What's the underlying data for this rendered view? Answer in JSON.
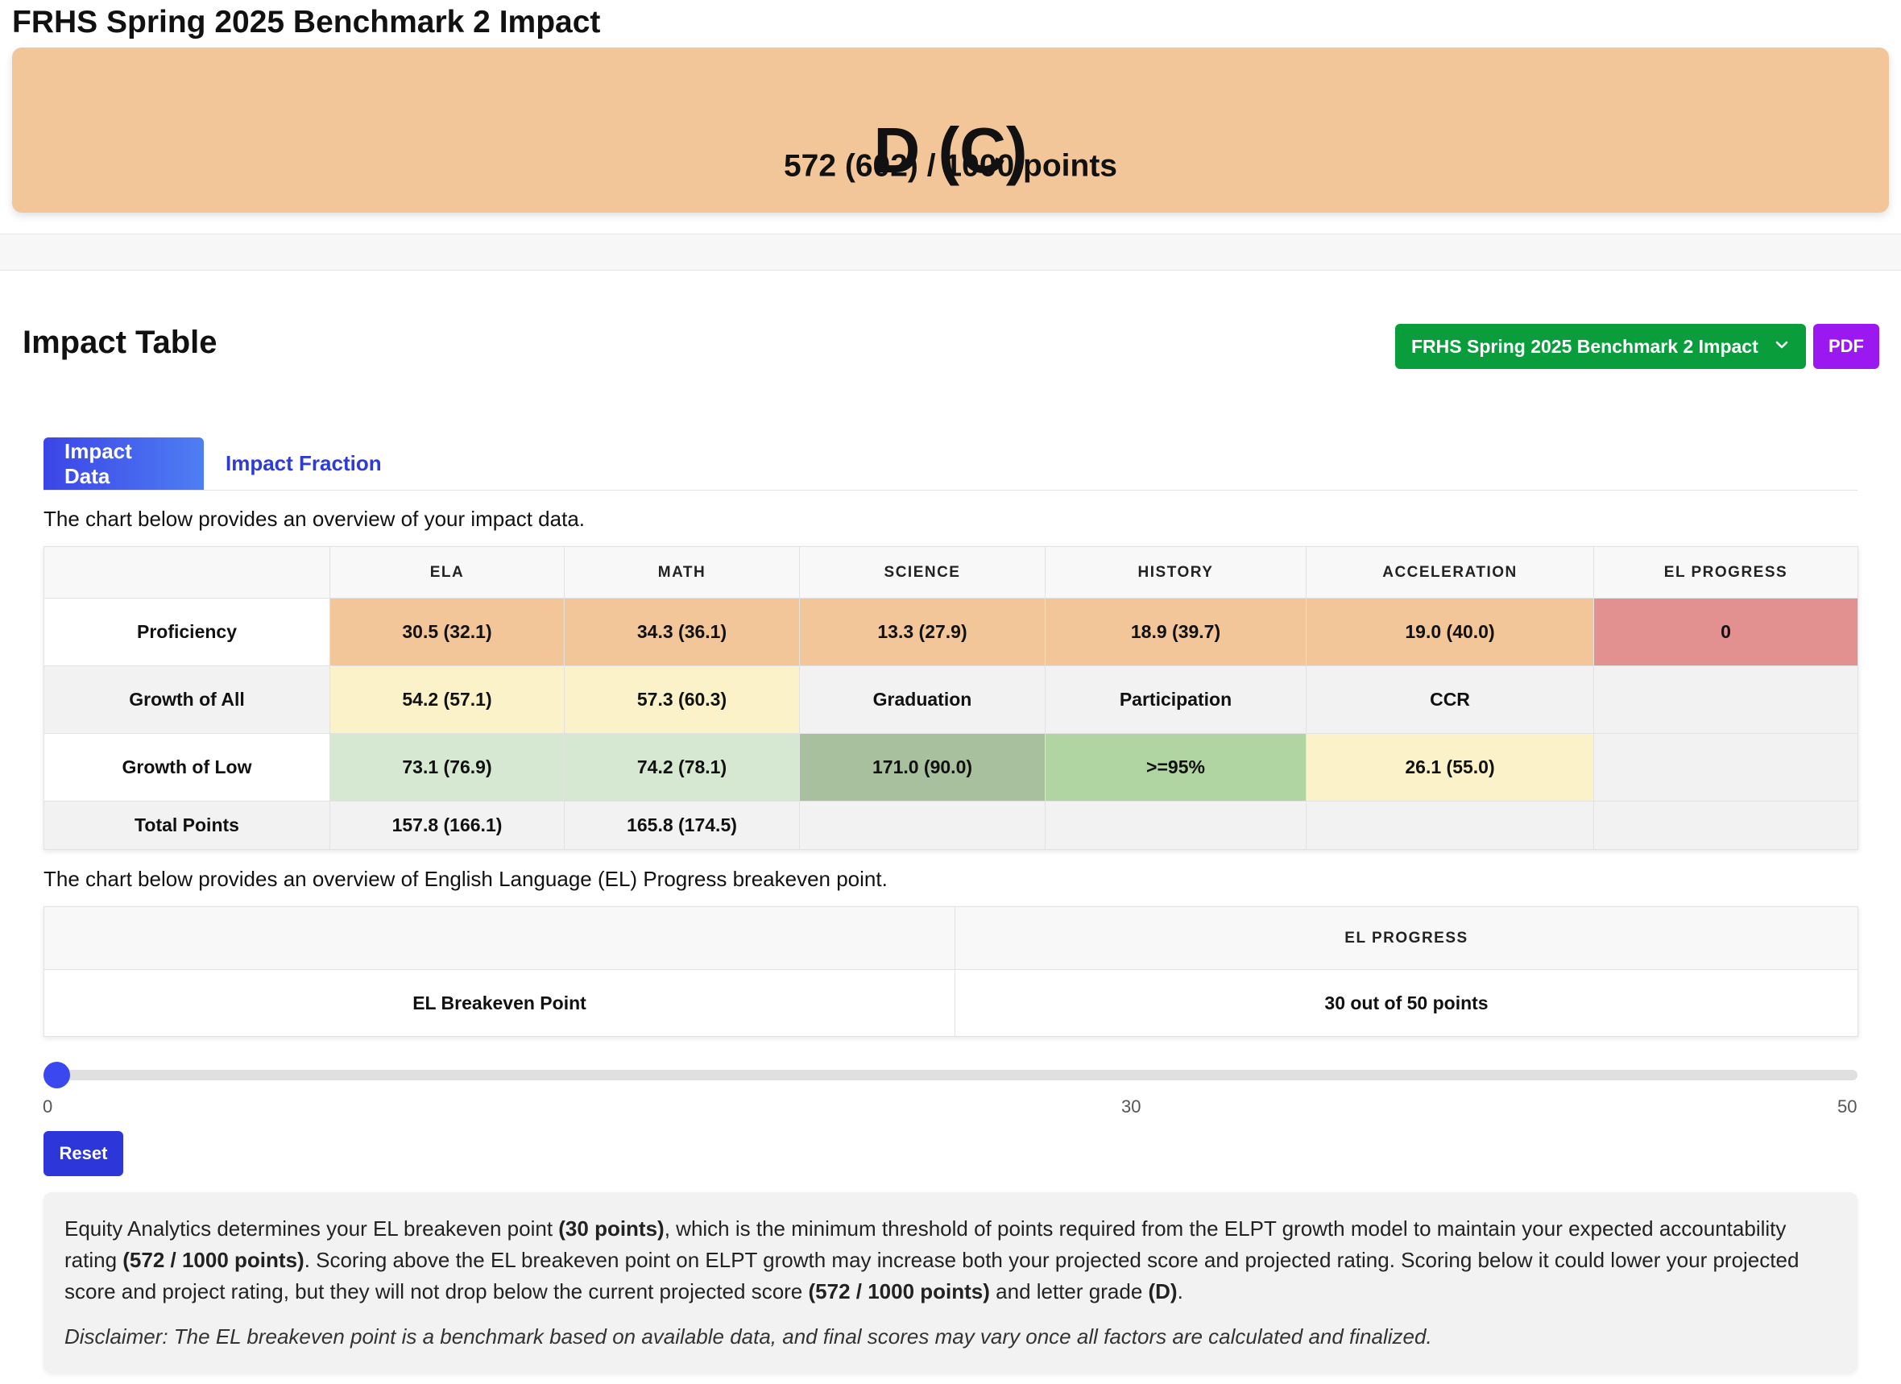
{
  "page": {
    "title": "FRHS Spring 2025 Benchmark 2 Impact"
  },
  "grade": {
    "letter": "D (C)",
    "points": "572 (602) / 1000 points"
  },
  "section": {
    "title": "Impact Table"
  },
  "toolbar": {
    "select_value": "FRHS Spring 2025 Benchmark 2 Impact",
    "pdf_label": "PDF"
  },
  "tabs": [
    {
      "label": "Impact Data",
      "active": true
    },
    {
      "label": "Impact Fraction",
      "active": false
    }
  ],
  "intro_impact": "The chart below provides an overview of your impact data.",
  "impact_table": {
    "headers": [
      "",
      "ELA",
      "MATH",
      "SCIENCE",
      "HISTORY",
      "ACCELERATION",
      "EL PROGRESS"
    ],
    "rows": [
      {
        "label": "Proficiency",
        "cells": [
          "30.5 (32.1)",
          "34.3 (36.1)",
          "13.3 (27.9)",
          "18.9 (39.7)",
          "19.0 (40.0)",
          "0"
        ]
      },
      {
        "label": "Growth of All",
        "cells": [
          "54.2 (57.1)",
          "57.3 (60.3)",
          "Graduation",
          "Participation",
          "CCR",
          ""
        ]
      },
      {
        "label": "Growth of Low",
        "cells": [
          "73.1 (76.9)",
          "74.2 (78.1)",
          "171.0 (90.0)",
          ">=95%",
          "26.1 (55.0)",
          ""
        ]
      },
      {
        "label": "Total Points",
        "cells": [
          "157.8 (166.1)",
          "165.8 (174.5)",
          "",
          "",
          "",
          ""
        ]
      }
    ]
  },
  "intro_el": "The chart below provides an overview of English Language (EL) Progress breakeven point.",
  "el_table": {
    "header": [
      "",
      "EL PROGRESS"
    ],
    "row": {
      "label": "EL Breakeven Point",
      "value": "30 out of 50 points"
    }
  },
  "slider": {
    "min": "0",
    "mid": "30",
    "max": "50",
    "value": 0
  },
  "reset_label": "Reset",
  "note": {
    "p1_a": "Equity Analytics determines your EL breakeven point ",
    "p1_b": "(30 points)",
    "p1_c": ", which is the minimum threshold of points required from the ELPT growth model to maintain your expected accountability rating ",
    "p1_d": "(572 / 1000 points)",
    "p1_e": ". Scoring above the EL breakeven point on ELPT growth may increase both your projected score and projected rating. Scoring below it could lower your projected score and project rating, but they will not drop below the current projected score ",
    "p1_f": "(572 / 1000 points)",
    "p1_g": " and letter grade ",
    "p1_h": "(D)",
    "p1_i": ".",
    "disclaimer": "Disclaimer: The EL breakeven point is a benchmark based on available data, and final scores may vary once all factors are calculated and finalized."
  },
  "colors": {
    "grade_card": "#f3c699",
    "select_green": "#0a9d3c",
    "pdf_purple": "#9b19f0",
    "tab_blue": "#3b45e8",
    "orange": "#f3c699",
    "red": "#e39090",
    "yellow": "#fcf2ca",
    "light_green": "#d6e7d2",
    "dark_green": "#a8c09d",
    "mid_green": "#b0d4a2",
    "slider_thumb": "#3c48ef",
    "reset_blue": "#2d36d9"
  },
  "icons": {
    "dropdown": "chevron-down-icon"
  }
}
